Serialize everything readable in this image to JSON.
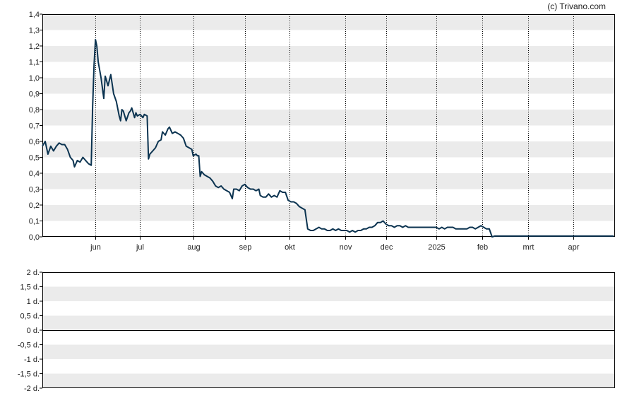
{
  "credit": "(c) Trivano.com",
  "colors": {
    "line": "#0b3350",
    "band": "#ebebeb",
    "axis": "#000000",
    "gridline": "#000000"
  },
  "chart_data": [
    {
      "type": "line",
      "title": "",
      "ylim": [
        0,
        1.4
      ],
      "yticks": [
        "0,0",
        "0,1",
        "0,2",
        "0,3",
        "0,4",
        "0,5",
        "0,6",
        "0,7",
        "0,8",
        "0,9",
        "1,0",
        "1,1",
        "1,2",
        "1,3",
        "1,4"
      ],
      "month_labels": [
        "jun",
        "jul",
        "aug",
        "sep",
        "okt",
        "nov",
        "dec",
        "2025",
        "feb",
        "mrt",
        "apr"
      ],
      "month_day_index": [
        38,
        70,
        108,
        145,
        177,
        217,
        246,
        282,
        315,
        348,
        380
      ],
      "total_days": 410,
      "grid": "dotted vertical month lines, alternating horizontal bands",
      "series": [
        {
          "name": "",
          "points": [
            [
              0,
              0.57
            ],
            [
              2,
              0.6
            ],
            [
              4,
              0.52
            ],
            [
              6,
              0.57
            ],
            [
              8,
              0.54
            ],
            [
              10,
              0.57
            ],
            [
              12,
              0.59
            ],
            [
              14,
              0.58
            ],
            [
              16,
              0.58
            ],
            [
              18,
              0.55
            ],
            [
              20,
              0.5
            ],
            [
              22,
              0.48
            ],
            [
              23,
              0.44
            ],
            [
              25,
              0.48
            ],
            [
              27,
              0.47
            ],
            [
              29,
              0.5
            ],
            [
              31,
              0.48
            ],
            [
              33,
              0.46
            ],
            [
              35,
              0.45
            ],
            [
              36,
              0.82
            ],
            [
              37,
              1.08
            ],
            [
              38,
              1.24
            ],
            [
              39,
              1.2
            ],
            [
              40,
              1.1
            ],
            [
              42,
              1.0
            ],
            [
              44,
              0.87
            ],
            [
              45,
              1.01
            ],
            [
              47,
              0.95
            ],
            [
              49,
              1.02
            ],
            [
              51,
              0.9
            ],
            [
              53,
              0.85
            ],
            [
              55,
              0.76
            ],
            [
              56,
              0.73
            ],
            [
              57,
              0.8
            ],
            [
              58,
              0.79
            ],
            [
              60,
              0.73
            ],
            [
              62,
              0.78
            ],
            [
              63,
              0.79
            ],
            [
              64,
              0.81
            ],
            [
              65,
              0.78
            ],
            [
              66,
              0.75
            ],
            [
              67,
              0.78
            ],
            [
              68,
              0.76
            ],
            [
              70,
              0.77
            ],
            [
              72,
              0.75
            ],
            [
              73,
              0.77
            ],
            [
              75,
              0.76
            ],
            [
              76,
              0.49
            ],
            [
              77,
              0.52
            ],
            [
              79,
              0.54
            ],
            [
              81,
              0.56
            ],
            [
              83,
              0.6
            ],
            [
              85,
              0.61
            ],
            [
              86,
              0.66
            ],
            [
              88,
              0.64
            ],
            [
              90,
              0.68
            ],
            [
              91,
              0.69
            ],
            [
              93,
              0.65
            ],
            [
              95,
              0.66
            ],
            [
              97,
              0.65
            ],
            [
              99,
              0.64
            ],
            [
              101,
              0.62
            ],
            [
              103,
              0.57
            ],
            [
              105,
              0.56
            ],
            [
              107,
              0.55
            ],
            [
              108,
              0.51
            ],
            [
              110,
              0.52
            ],
            [
              111,
              0.51
            ],
            [
              112,
              0.51
            ],
            [
              113,
              0.38
            ],
            [
              114,
              0.41
            ],
            [
              116,
              0.39
            ],
            [
              118,
              0.38
            ],
            [
              120,
              0.37
            ],
            [
              122,
              0.35
            ],
            [
              124,
              0.32
            ],
            [
              126,
              0.31
            ],
            [
              128,
              0.32
            ],
            [
              130,
              0.3
            ],
            [
              132,
              0.29
            ],
            [
              134,
              0.28
            ],
            [
              136,
              0.24
            ],
            [
              137,
              0.3
            ],
            [
              139,
              0.3
            ],
            [
              141,
              0.29
            ],
            [
              143,
              0.32
            ],
            [
              145,
              0.33
            ],
            [
              147,
              0.31
            ],
            [
              149,
              0.3
            ],
            [
              151,
              0.3
            ],
            [
              153,
              0.29
            ],
            [
              155,
              0.3
            ],
            [
              156,
              0.26
            ],
            [
              158,
              0.25
            ],
            [
              160,
              0.25
            ],
            [
              162,
              0.27
            ],
            [
              164,
              0.25
            ],
            [
              166,
              0.26
            ],
            [
              168,
              0.25
            ],
            [
              170,
              0.29
            ],
            [
              172,
              0.28
            ],
            [
              174,
              0.28
            ],
            [
              176,
              0.23
            ],
            [
              178,
              0.22
            ],
            [
              180,
              0.22
            ],
            [
              182,
              0.21
            ],
            [
              184,
              0.19
            ],
            [
              186,
              0.18
            ],
            [
              188,
              0.17
            ],
            [
              190,
              0.05
            ],
            [
              192,
              0.04
            ],
            [
              194,
              0.04
            ],
            [
              196,
              0.05
            ],
            [
              198,
              0.06
            ],
            [
              200,
              0.05
            ],
            [
              202,
              0.05
            ],
            [
              204,
              0.04
            ],
            [
              206,
              0.04
            ],
            [
              208,
              0.05
            ],
            [
              210,
              0.04
            ],
            [
              212,
              0.05
            ],
            [
              214,
              0.04
            ],
            [
              216,
              0.04
            ],
            [
              218,
              0.04
            ],
            [
              220,
              0.03
            ],
            [
              222,
              0.04
            ],
            [
              224,
              0.03
            ],
            [
              226,
              0.04
            ],
            [
              228,
              0.04
            ],
            [
              230,
              0.05
            ],
            [
              232,
              0.05
            ],
            [
              234,
              0.06
            ],
            [
              236,
              0.06
            ],
            [
              238,
              0.07
            ],
            [
              240,
              0.09
            ],
            [
              242,
              0.09
            ],
            [
              244,
              0.1
            ],
            [
              246,
              0.08
            ],
            [
              248,
              0.07
            ],
            [
              250,
              0.07
            ],
            [
              252,
              0.06
            ],
            [
              254,
              0.07
            ],
            [
              256,
              0.07
            ],
            [
              258,
              0.06
            ],
            [
              260,
              0.07
            ],
            [
              262,
              0.06
            ],
            [
              264,
              0.06
            ],
            [
              266,
              0.06
            ],
            [
              268,
              0.06
            ],
            [
              270,
              0.06
            ],
            [
              272,
              0.06
            ],
            [
              274,
              0.06
            ],
            [
              276,
              0.06
            ],
            [
              278,
              0.06
            ],
            [
              280,
              0.06
            ],
            [
              282,
              0.06
            ],
            [
              284,
              0.05
            ],
            [
              286,
              0.06
            ],
            [
              288,
              0.05
            ],
            [
              290,
              0.06
            ],
            [
              292,
              0.06
            ],
            [
              294,
              0.06
            ],
            [
              296,
              0.05
            ],
            [
              298,
              0.05
            ],
            [
              300,
              0.05
            ],
            [
              302,
              0.05
            ],
            [
              304,
              0.05
            ],
            [
              306,
              0.06
            ],
            [
              308,
              0.06
            ],
            [
              310,
              0.05
            ],
            [
              312,
              0.06
            ],
            [
              314,
              0.07
            ],
            [
              316,
              0.06
            ],
            [
              318,
              0.05
            ],
            [
              320,
              0.05
            ],
            [
              322,
              0.0
            ],
            [
              324,
              0.005
            ],
            [
              326,
              0.005
            ],
            [
              330,
              0.005
            ],
            [
              334,
              0.005
            ],
            [
              338,
              0.005
            ],
            [
              342,
              0.005
            ],
            [
              346,
              0.005
            ],
            [
              350,
              0.005
            ],
            [
              354,
              0.005
            ],
            [
              358,
              0.005
            ],
            [
              362,
              0.005
            ],
            [
              366,
              0.005
            ],
            [
              370,
              0.005
            ],
            [
              374,
              0.005
            ],
            [
              378,
              0.005
            ],
            [
              382,
              0.005
            ],
            [
              386,
              0.005
            ],
            [
              390,
              0.005
            ],
            [
              394,
              0.005
            ],
            [
              398,
              0.005
            ],
            [
              402,
              0.005
            ],
            [
              406,
              0.005
            ],
            [
              409,
              0.005
            ]
          ]
        }
      ]
    },
    {
      "type": "line",
      "title": "",
      "ylim": [
        -2,
        2
      ],
      "yticks": [
        "2 d.",
        "1,5 d.",
        "1 d.",
        "0,5 d.",
        "0 d.",
        "-0,5 d.",
        "-1 d.",
        "-1,5 d.",
        "-2 d."
      ],
      "series": []
    }
  ]
}
